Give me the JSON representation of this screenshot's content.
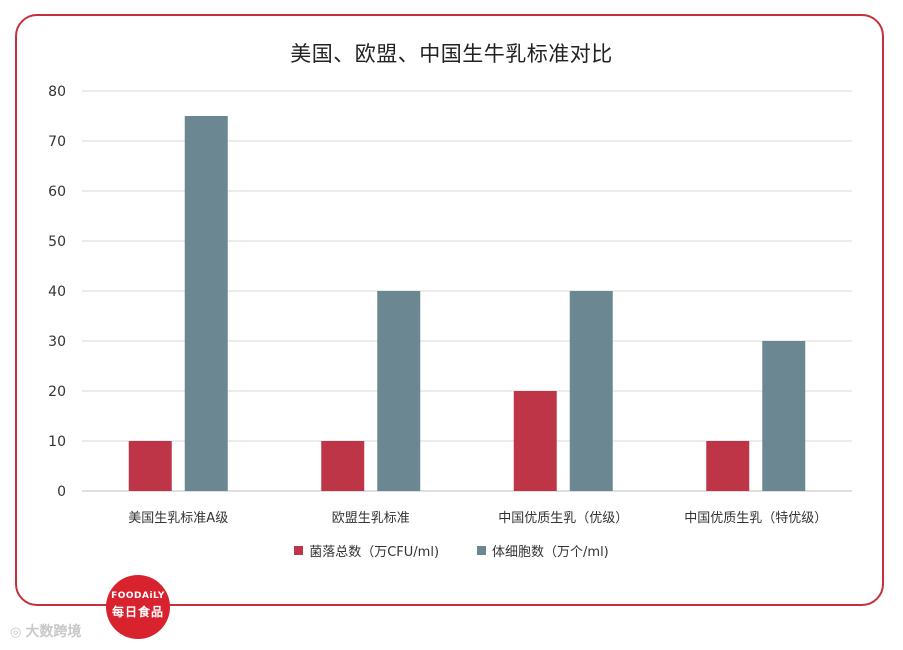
{
  "chart_data": {
    "type": "bar",
    "title": "美国、欧盟、中国生牛乳标准对比",
    "categories": [
      "美国生乳标准A级",
      "欧盟生乳标准",
      "中国优质生乳（优级）",
      "中国优质生乳（特优级）"
    ],
    "series": [
      {
        "name": "菌落总数（万CFU/ml)",
        "values": [
          10,
          10,
          20,
          10
        ],
        "color": "#bf3548"
      },
      {
        "name": "体细胞数（万个/ml)",
        "values": [
          75,
          40,
          40,
          30
        ],
        "color": "#6b8791"
      }
    ],
    "yticks": [
      "0",
      "10",
      "20",
      "30",
      "40",
      "50",
      "60",
      "70",
      "80"
    ],
    "ylim": [
      0,
      80
    ],
    "grid": true,
    "legend": "bottom"
  },
  "branding": {
    "badge_en": "FOODAiLY",
    "badge_cn": "每日食品",
    "bottom_watermark": "大数跨境",
    "frame_color": "#c4303c"
  }
}
